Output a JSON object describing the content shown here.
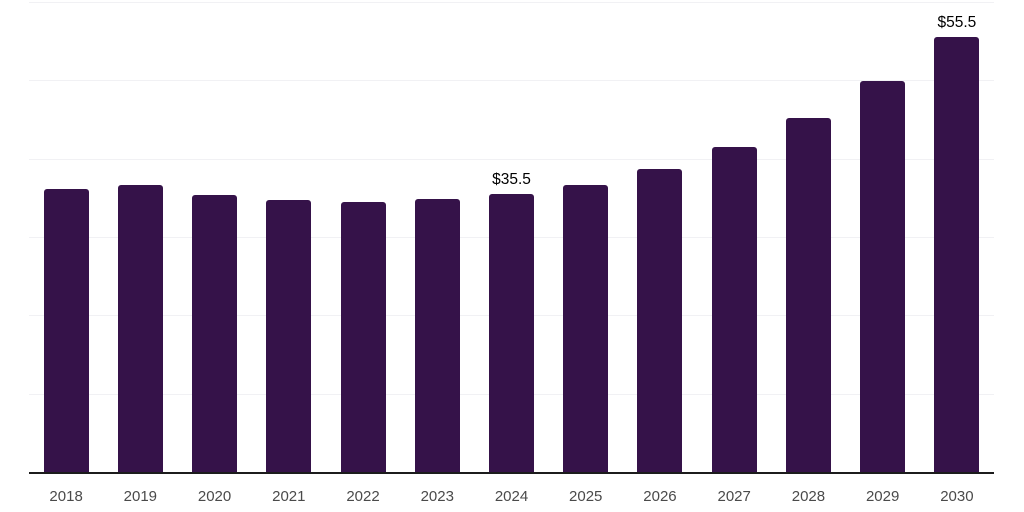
{
  "chart_data": {
    "type": "bar",
    "title": "",
    "xlabel": "",
    "ylabel": "",
    "categories": [
      "2018",
      "2019",
      "2020",
      "2021",
      "2022",
      "2023",
      "2024",
      "2025",
      "2026",
      "2027",
      "2028",
      "2029",
      "2030"
    ],
    "values": [
      36.1,
      36.6,
      35.4,
      34.7,
      34.5,
      34.9,
      35.5,
      36.7,
      38.7,
      41.5,
      45.2,
      49.9,
      55.5
    ],
    "bar_labels": [
      null,
      null,
      null,
      null,
      null,
      null,
      "$35.5",
      null,
      null,
      null,
      null,
      null,
      "$55.5"
    ],
    "ylim": [
      0,
      60
    ],
    "gridline_step": 10,
    "grid": "horizontal",
    "legend": "none",
    "colors": {
      "bar": "#351249",
      "axis": "#1c1c1c",
      "gridline": "#f1f1f4",
      "tick_label": "#4a4a4a",
      "data_label": "#000000",
      "background": "#ffffff"
    }
  }
}
